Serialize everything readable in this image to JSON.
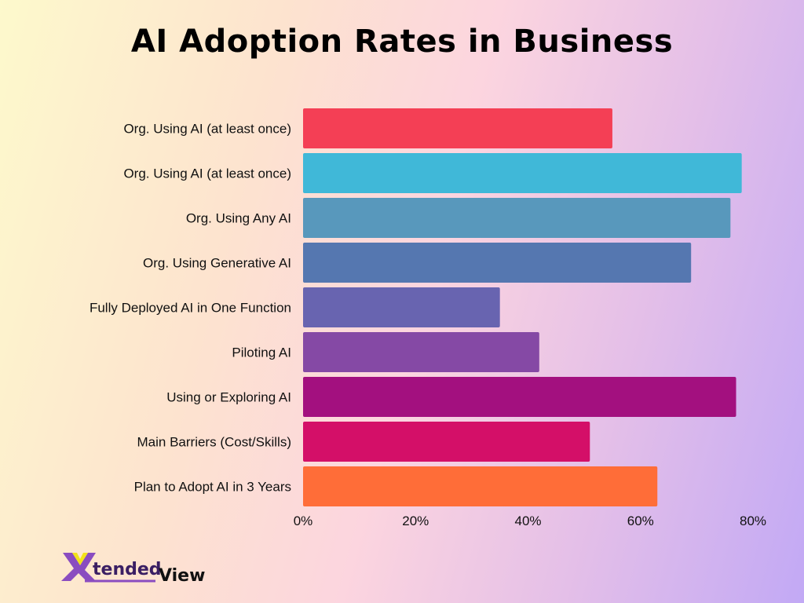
{
  "chart_data": {
    "type": "bar",
    "orientation": "horizontal",
    "title": "AI Adoption Rates in Business",
    "xlabel": "",
    "ylabel": "",
    "xlim": [
      0,
      80
    ],
    "grid": false,
    "categories": [
      "Org. Using AI (at least once)",
      "Org. Using AI (at least once)",
      "Org. Using Any AI",
      "Org. Using Generative AI",
      "Fully Deployed AI in One Function",
      "Piloting AI",
      "Using or Exploring AI",
      "Main Barriers (Cost/Skills)",
      "Plan to Adopt AI in 3 Years"
    ],
    "values": [
      55,
      78,
      76,
      69,
      35,
      42,
      77,
      51,
      63
    ],
    "colors": [
      "#f43f55",
      "#40b8d8",
      "#5898bc",
      "#5577b0",
      "#6864b0",
      "#8549a5",
      "#a3107f",
      "#d40f68",
      "#ff6d38"
    ],
    "xticks": [
      0,
      20,
      40,
      60,
      80
    ],
    "xtick_labels": [
      "0%",
      "20%",
      "40%",
      "60%",
      "80%"
    ]
  },
  "logo": {
    "text_part1": "tended",
    "text_part2": "View",
    "letter": "X"
  }
}
